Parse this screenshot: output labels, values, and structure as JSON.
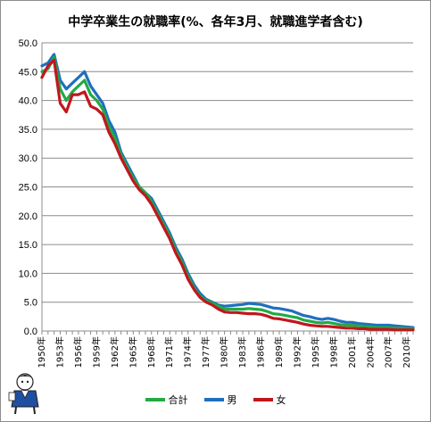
{
  "chart_data": {
    "type": "line",
    "title": "中学卒業生の就職率(%、各年3月、就職進学者含む)",
    "ylim": [
      0,
      50
    ],
    "yticks": [
      "0.0",
      "5.0",
      "10.0",
      "15.0",
      "20.0",
      "25.0",
      "30.0",
      "35.0",
      "40.0",
      "45.0",
      "50.0"
    ],
    "x_start": 1950,
    "x_end": 2011,
    "xtick_labels": [
      "1950年",
      "1953年",
      "1956年",
      "1959年",
      "1962年",
      "1965年",
      "1968年",
      "1971年",
      "1974年",
      "1977年",
      "1980年",
      "1983年",
      "1986年",
      "1989年",
      "1992年",
      "1995年",
      "1998年",
      "2001年",
      "2004年",
      "2007年",
      "2010年"
    ],
    "grid": true,
    "legend_position": "bottom",
    "series": [
      {
        "name": "男",
        "color": "#1f6fbf",
        "values": [
          46.0,
          46.5,
          48.0,
          43.5,
          42.0,
          43.0,
          44.0,
          45.0,
          42.5,
          41.0,
          39.5,
          36.5,
          34.5,
          31.0,
          29.0,
          27.0,
          25.0,
          24.0,
          23.0,
          21.0,
          19.0,
          17.0,
          14.5,
          12.5,
          10.0,
          8.0,
          6.5,
          5.5,
          5.0,
          4.5,
          4.3,
          4.4,
          4.5,
          4.6,
          4.8,
          4.7,
          4.6,
          4.3,
          4.0,
          3.9,
          3.7,
          3.5,
          3.1,
          2.7,
          2.5,
          2.2,
          2.0,
          2.2,
          2.0,
          1.7,
          1.5,
          1.5,
          1.3,
          1.2,
          1.1,
          1.0,
          1.0,
          1.0,
          0.9,
          0.8,
          0.7,
          0.6
        ]
      },
      {
        "name": "合計",
        "color": "#22aa44",
        "values": [
          45.0,
          45.5,
          47.5,
          42.0,
          40.0,
          41.5,
          42.5,
          43.5,
          41.0,
          40.0,
          38.5,
          35.5,
          33.5,
          30.5,
          28.5,
          26.5,
          25.0,
          24.0,
          22.5,
          20.5,
          18.5,
          16.5,
          14.0,
          12.0,
          9.5,
          7.5,
          6.0,
          5.3,
          4.8,
          4.3,
          3.8,
          3.8,
          3.8,
          3.8,
          3.9,
          3.8,
          3.7,
          3.4,
          3.0,
          2.9,
          2.7,
          2.5,
          2.3,
          1.9,
          1.7,
          1.5,
          1.4,
          1.5,
          1.3,
          1.1,
          1.0,
          1.0,
          0.9,
          0.8,
          0.7,
          0.6,
          0.6,
          0.6,
          0.5,
          0.5,
          0.4,
          0.4
        ]
      },
      {
        "name": "女",
        "color": "#c0171e",
        "values": [
          44.0,
          46.0,
          47.0,
          39.5,
          38.0,
          41.0,
          41.0,
          41.5,
          39.0,
          38.5,
          37.5,
          34.5,
          32.5,
          30.0,
          28.0,
          26.0,
          24.5,
          23.5,
          22.0,
          20.0,
          18.0,
          16.0,
          13.5,
          11.5,
          9.0,
          7.2,
          5.8,
          5.0,
          4.5,
          3.8,
          3.3,
          3.2,
          3.2,
          3.1,
          3.0,
          3.0,
          2.9,
          2.6,
          2.2,
          2.1,
          1.9,
          1.7,
          1.5,
          1.2,
          1.0,
          0.9,
          0.8,
          0.8,
          0.7,
          0.6,
          0.5,
          0.5,
          0.4,
          0.4,
          0.3,
          0.3,
          0.3,
          0.3,
          0.2,
          0.2,
          0.2,
          0.2
        ]
      }
    ]
  },
  "legend_order": [
    "合計",
    "男",
    "女"
  ]
}
